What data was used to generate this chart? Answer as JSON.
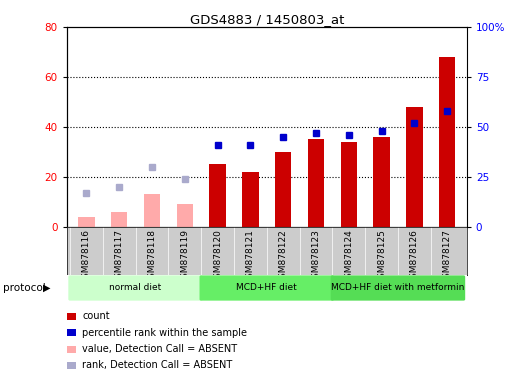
{
  "title": "GDS4883 / 1450803_at",
  "samples": [
    "GSM878116",
    "GSM878117",
    "GSM878118",
    "GSM878119",
    "GSM878120",
    "GSM878121",
    "GSM878122",
    "GSM878123",
    "GSM878124",
    "GSM878125",
    "GSM878126",
    "GSM878127"
  ],
  "bar_values": [
    null,
    null,
    null,
    null,
    25,
    22,
    30,
    35,
    34,
    36,
    48,
    68
  ],
  "bar_absent_values": [
    4,
    6,
    13,
    9,
    null,
    null,
    null,
    null,
    null,
    null,
    null,
    null
  ],
  "rank_values": [
    null,
    null,
    null,
    null,
    41,
    41,
    45,
    47,
    46,
    48,
    52,
    58
  ],
  "rank_absent_values": [
    17,
    20,
    30,
    24,
    null,
    null,
    null,
    null,
    null,
    null,
    null,
    null
  ],
  "bar_color": "#cc0000",
  "bar_absent_color": "#ffaaaa",
  "rank_color": "#0000cc",
  "rank_absent_color": "#aaaacc",
  "ylim_left": [
    0,
    80
  ],
  "ylim_right": [
    0,
    100
  ],
  "yticks_left": [
    0,
    20,
    40,
    60,
    80
  ],
  "yticks_right": [
    0,
    25,
    50,
    75,
    100
  ],
  "ytick_labels_right": [
    "0",
    "25",
    "50",
    "75",
    "100%"
  ],
  "protocols": [
    {
      "label": "normal diet",
      "start": 0,
      "end": 3,
      "color": "#ccffcc"
    },
    {
      "label": "MCD+HF diet",
      "start": 4,
      "end": 7,
      "color": "#66ee66"
    },
    {
      "label": "MCD+HF diet with metformin",
      "start": 8,
      "end": 11,
      "color": "#55dd55"
    }
  ],
  "protocol_label": "protocol",
  "legend_items": [
    {
      "label": "count",
      "color": "#cc0000"
    },
    {
      "label": "percentile rank within the sample",
      "color": "#0000cc"
    },
    {
      "label": "value, Detection Call = ABSENT",
      "color": "#ffaaaa"
    },
    {
      "label": "rank, Detection Call = ABSENT",
      "color": "#aaaacc"
    }
  ],
  "background_color": "#ffffff",
  "xlabel_bg": "#cccccc",
  "bar_width": 0.5,
  "n_samples": 12,
  "grid_yticks": [
    20,
    40,
    60
  ]
}
